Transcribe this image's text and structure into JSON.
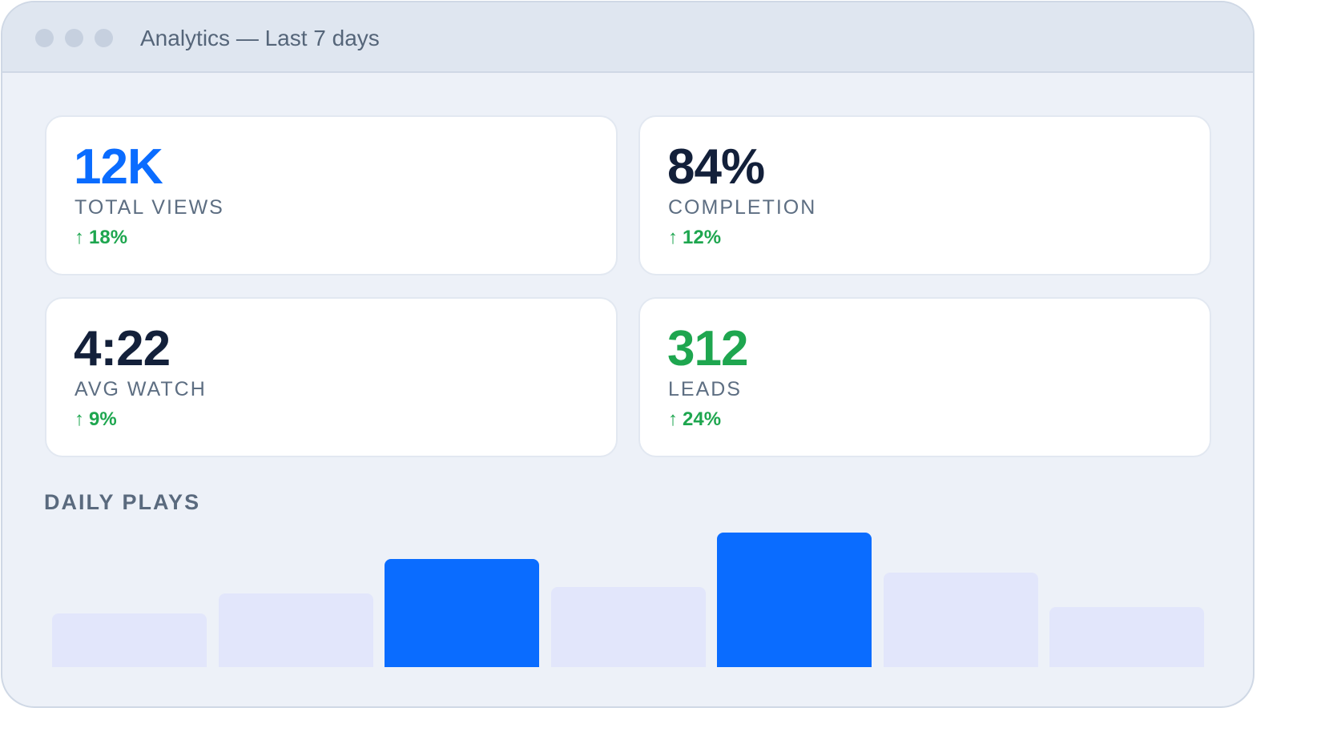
{
  "window": {
    "title": "Analytics — Last 7 days"
  },
  "stats": [
    {
      "value": "12K",
      "label": "TOTAL VIEWS",
      "arrow": "↑",
      "delta": "18%",
      "value_color": "#0a6cff"
    },
    {
      "value": "84%",
      "label": "COMPLETION",
      "arrow": "↑",
      "delta": "12%",
      "value_color": "#13203a"
    },
    {
      "value": "4:22",
      "label": "AVG WATCH",
      "arrow": "↑",
      "delta": "9%",
      "value_color": "#13203a"
    },
    {
      "value": "312",
      "label": "LEADS",
      "arrow": "↑",
      "delta": "24%",
      "value_color": "#1ea64f"
    }
  ],
  "section": {
    "title": "DAILY PLAYS"
  },
  "colors": {
    "accent": "#0a6cff",
    "bar_muted": "#e2e6fb",
    "positive": "#1ea64f"
  },
  "chart_data": {
    "type": "bar",
    "title": "DAILY PLAYS",
    "categories": [
      "",
      "",
      "",
      "",
      "",
      "",
      ""
    ],
    "values": [
      40,
      55,
      81,
      60,
      101,
      71,
      45
    ],
    "highlighted": [
      false,
      false,
      true,
      false,
      true,
      false,
      false
    ],
    "ylim": [
      0,
      108
    ],
    "grid": false,
    "axes_visible": false
  }
}
